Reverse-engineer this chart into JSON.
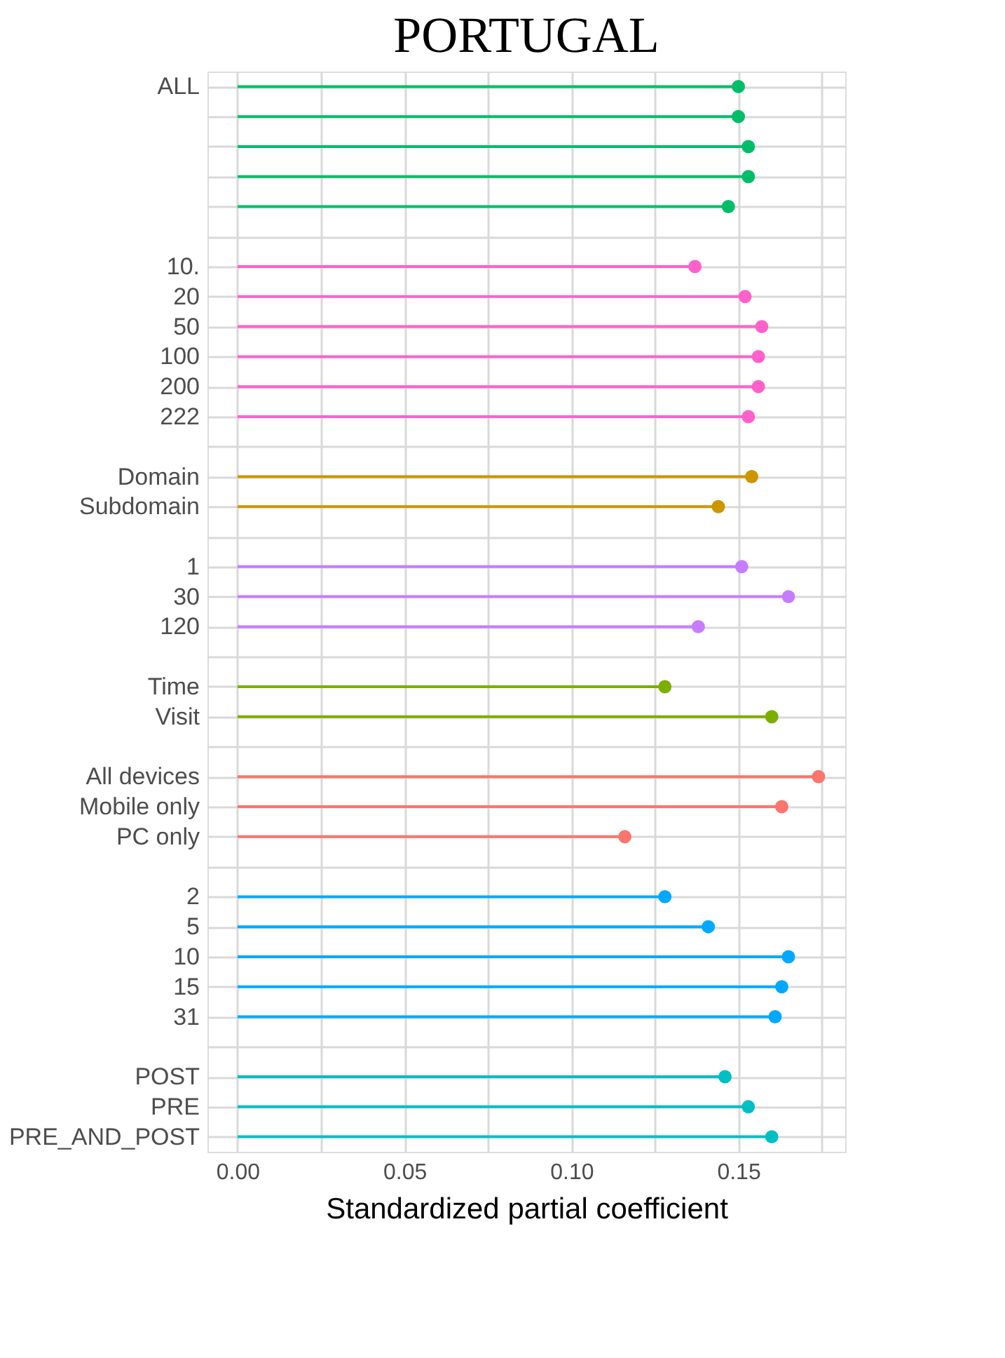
{
  "chart_data": {
    "type": "lollipop",
    "orientation": "horizontal",
    "title": "PORTUGAL",
    "xlabel": "Standardized partial coefficient",
    "categories": [
      "ALL",
      null,
      null,
      null,
      null,
      null,
      "10.",
      "20",
      "50",
      "100",
      "200",
      "222",
      null,
      "Domain",
      "Subdomain",
      null,
      "1",
      "30",
      "120",
      null,
      "Time",
      "Visit",
      null,
      "All devices",
      "Mobile only",
      "PC only",
      null,
      "2",
      "5",
      "10",
      "15",
      "31",
      null,
      "POST",
      "PRE",
      "PRE_AND_POST"
    ],
    "series": [
      {
        "values": [
          0.15,
          0.15,
          0.153,
          0.153,
          0.147,
          null,
          0.137,
          0.152,
          0.157,
          0.156,
          0.156,
          0.153,
          null,
          0.154,
          0.144,
          null,
          0.151,
          0.165,
          0.138,
          null,
          0.128,
          0.16,
          null,
          0.174,
          0.163,
          0.116,
          null,
          0.128,
          0.141,
          0.165,
          0.163,
          0.161,
          null,
          0.146,
          0.153,
          0.16
        ],
        "colors": [
          "#00BE67",
          "#00BE67",
          "#00BE67",
          "#00BE67",
          "#00BE67",
          null,
          "#FF61CC",
          "#FF61CC",
          "#FF61CC",
          "#FF61CC",
          "#FF61CC",
          "#FF61CC",
          null,
          "#CD9600",
          "#CD9600",
          null,
          "#C77CFF",
          "#C77CFF",
          "#C77CFF",
          null,
          "#7CAE00",
          "#7CAE00",
          null,
          "#F8766D",
          "#F8766D",
          "#F8766D",
          null,
          "#00A9FF",
          "#00A9FF",
          "#00A9FF",
          "#00A9FF",
          "#00A9FF",
          null,
          "#00BFC4",
          "#00BFC4",
          "#00BFC4"
        ]
      }
    ],
    "xlim": [
      -0.009,
      0.182
    ],
    "xticks": [
      {
        "value": 0,
        "label": "0.00"
      },
      {
        "value": 0.025,
        "label": null
      },
      {
        "value": 0.05,
        "label": "0.05"
      },
      {
        "value": 0.075,
        "label": null
      },
      {
        "value": 0.1,
        "label": "0.10"
      },
      {
        "value": 0.125,
        "label": null
      },
      {
        "value": 0.15,
        "label": "0.15"
      },
      {
        "value": 0.175,
        "label": null
      }
    ],
    "grid": true,
    "marker": "circle"
  }
}
